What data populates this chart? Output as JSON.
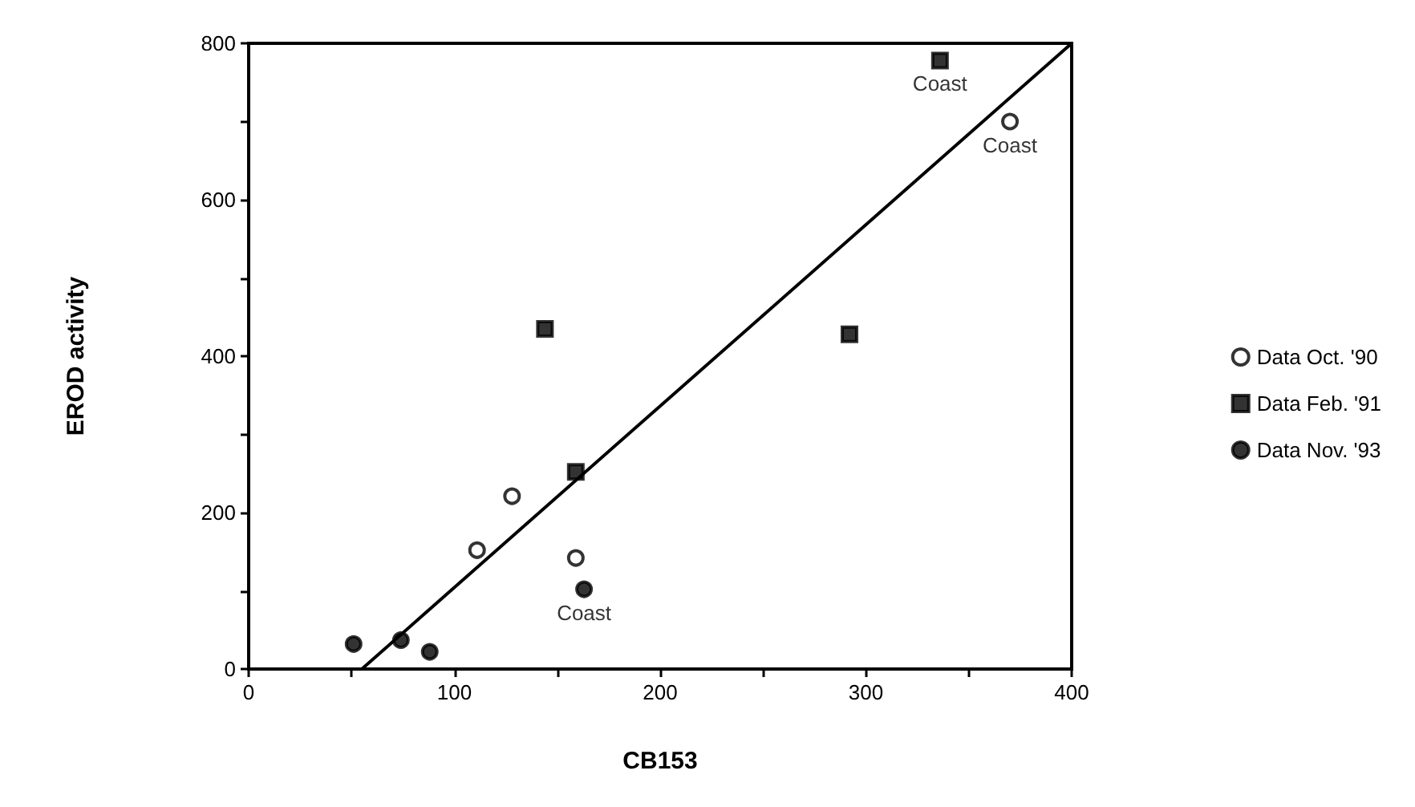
{
  "chart_data": {
    "type": "scatter",
    "xlabel": "CB153",
    "ylabel": "EROD activity",
    "xlim": [
      0,
      400
    ],
    "xticks": [
      0,
      {
        "value": 50,
        "label": null
      },
      100,
      {
        "value": 150,
        "label": null
      },
      200,
      {
        "value": 250,
        "label": null
      },
      300,
      {
        "value": 350,
        "label": null
      },
      400
    ],
    "ylim": [
      0,
      800
    ],
    "yticks": [
      0,
      {
        "value": 100,
        "label": null
      },
      200,
      {
        "value": 300,
        "label": null
      },
      400,
      {
        "value": 500,
        "label": null
      },
      600,
      {
        "value": 700,
        "label": null
      },
      800
    ],
    "grid": false,
    "legend": "right",
    "series": [
      {
        "name": "Data Oct. '90",
        "color": "#ffffff",
        "marker": "circle",
        "x": [
          111,
          128,
          159,
          370
        ],
        "values": [
          152,
          221,
          142,
          700
        ]
      },
      {
        "name": "Data Feb. '91",
        "color": "#000000",
        "marker": "square",
        "x": [
          144,
          159,
          292,
          336
        ],
        "values": [
          435,
          252,
          428,
          778
        ]
      },
      {
        "name": "Data Nov. '93",
        "color": "#000000",
        "marker": "circle",
        "x": [
          51,
          74,
          88,
          163
        ],
        "values": [
          32,
          37,
          22,
          102
        ]
      },
      {
        "type": "line",
        "color": "#000000",
        "marker": "none",
        "line_style": "solid",
        "x": [
          55,
          400
        ],
        "values": [
          0,
          800
        ]
      }
    ],
    "annotations": [
      {
        "text": "Coast",
        "x": 336,
        "y": 778
      },
      {
        "text": "Coast",
        "x": 370,
        "y": 700
      },
      {
        "text": "Coast",
        "x": 163,
        "y": 102
      }
    ]
  }
}
